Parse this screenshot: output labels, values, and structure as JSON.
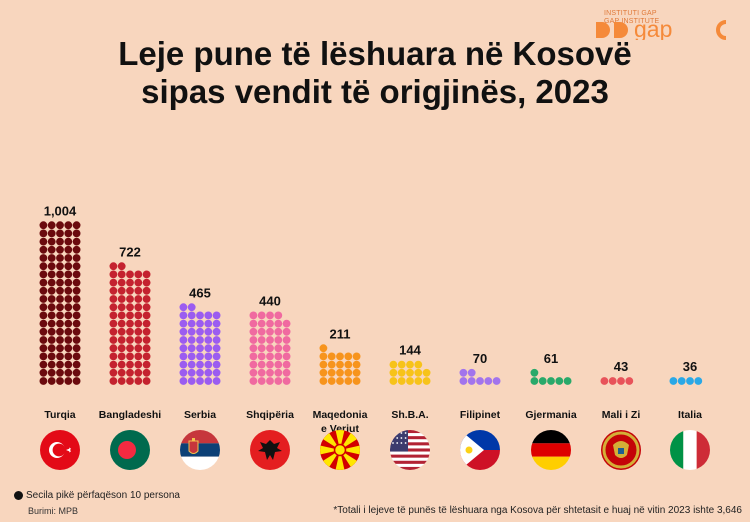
{
  "title": {
    "line1": "Leje pune të lëshuara në Kosovë",
    "line2": "sipas vendit të origjinës, 2023"
  },
  "logo": {
    "institute_lines": [
      "INSTITUTI GAP",
      "GAP INSTITUTE"
    ],
    "mark_text": "gap"
  },
  "legend": {
    "text": "Secila pikë përfaqëson 10 persona",
    "dot_color": "#111111"
  },
  "source": "Burimi: MPB",
  "footnote": "*Totali i lejeve të punës të lëshuara nga Kosova për shtetasit e huaj në vitin 2023 ishte 3,646",
  "colors": {
    "background": "#f8d6be",
    "brand": "#f58a3a"
  },
  "chart_data": {
    "type": "bar",
    "title": "Leje pune të lëshuara në Kosovë sipas vendit të origjinës, 2023",
    "unit_per_dot": 10,
    "categories": [
      "Turqia",
      "Bangladeshi",
      "Serbia",
      "Shqipëria",
      "Maqedonia e Veriut",
      "Sh.B.A.",
      "Filipinet",
      "Gjermania",
      "Mali i Zi",
      "Italia"
    ],
    "values": [
      1004,
      722,
      465,
      440,
      211,
      144,
      70,
      61,
      43,
      36
    ],
    "value_labels": [
      "1,004",
      "722",
      "465",
      "440",
      "211",
      "144",
      "70",
      "61",
      "43",
      "36"
    ],
    "colors": [
      "#6b0a0e",
      "#c4222f",
      "#9b5cf0",
      "#f06aa0",
      "#f7941d",
      "#f7c31a",
      "#a274ec",
      "#29a96a",
      "#e8535a",
      "#2aa8e6"
    ],
    "flags": [
      "turkey-flag",
      "bangladesh-flag",
      "serbia-flag",
      "albania-flag",
      "north-macedonia-flag",
      "usa-flag",
      "philippines-flag",
      "germany-flag",
      "montenegro-flag",
      "italy-flag"
    ]
  }
}
